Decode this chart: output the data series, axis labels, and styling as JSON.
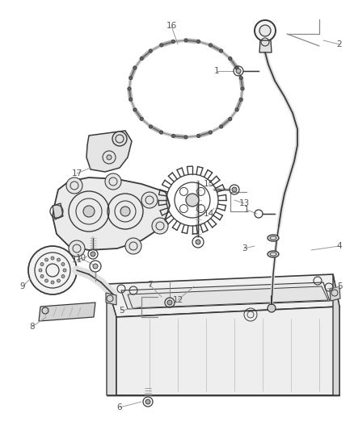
{
  "background_color": "#ffffff",
  "figsize": [
    4.38,
    5.33
  ],
  "dpi": 100,
  "line_color": "#3a3a3a",
  "text_color": "#555555",
  "label_fontsize": 7.5
}
